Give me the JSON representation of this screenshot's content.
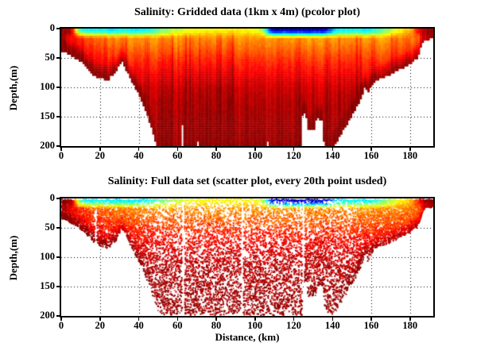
{
  "figure": {
    "background": "#ffffff",
    "text_color": "#000000"
  },
  "chart_data": {
    "charts": [
      {
        "type": "heatmap",
        "title": "Salinity: Gridded data (1km x 4m) (pcolor plot)",
        "xlabel": "",
        "ylabel": "Depth,(m)",
        "x_ticks": [
          0,
          20,
          40,
          60,
          80,
          100,
          120,
          140,
          160,
          180
        ],
        "y_ticks": [
          0,
          50,
          100,
          150,
          200
        ],
        "xlim": [
          0,
          192
        ],
        "ylim": [
          200,
          0
        ],
        "grid": "dotted",
        "colormap": "jet",
        "cell_km": 1,
        "cell_m": 4
      },
      {
        "type": "scatter",
        "title": "Salinity: Full data set (scatter plot, every 20th point usded)",
        "xlabel": "Distance, (km)",
        "ylabel": "Depth,(m)",
        "x_ticks": [
          0,
          20,
          40,
          60,
          80,
          100,
          120,
          140,
          160,
          180
        ],
        "y_ticks": [
          0,
          50,
          100,
          150,
          200
        ],
        "xlim": [
          0,
          192
        ],
        "ylim": [
          200,
          0
        ],
        "grid": "dotted",
        "colormap": "jet"
      }
    ],
    "field_model": {
      "comment_units": "seafloor: [km, depth_m]; surface_v and depth_profile: normalized jet colormap value 0..1 (0=fresh/blue, 1=salty/dark-red)",
      "seafloor": [
        [
          0,
          36
        ],
        [
          2,
          38
        ],
        [
          5,
          44
        ],
        [
          8,
          50
        ],
        [
          11,
          57
        ],
        [
          14,
          68
        ],
        [
          17,
          79
        ],
        [
          20,
          84
        ],
        [
          22,
          82
        ],
        [
          23,
          88
        ],
        [
          24.5,
          88
        ],
        [
          25.5,
          79
        ],
        [
          28,
          73
        ],
        [
          30,
          60
        ],
        [
          31,
          54
        ],
        [
          32,
          58
        ],
        [
          34,
          72
        ],
        [
          36,
          85
        ],
        [
          38,
          98
        ],
        [
          40,
          110
        ],
        [
          42,
          125
        ],
        [
          44,
          142
        ],
        [
          46,
          161
        ],
        [
          47.5,
          178
        ],
        [
          49,
          196
        ],
        [
          50,
          200
        ],
        [
          124,
          200
        ],
        [
          124.4,
          145
        ],
        [
          126.4,
          143
        ],
        [
          126.8,
          169
        ],
        [
          131,
          170
        ],
        [
          131.6,
          151
        ],
        [
          135,
          153
        ],
        [
          135.6,
          196
        ],
        [
          139,
          200
        ],
        [
          141,
          196
        ],
        [
          143,
          186
        ],
        [
          145,
          174
        ],
        [
          148,
          158
        ],
        [
          151,
          140
        ],
        [
          154,
          121
        ],
        [
          156,
          104
        ],
        [
          157,
          95
        ],
        [
          157.8,
          109
        ],
        [
          158.6,
          107
        ],
        [
          159.5,
          98
        ],
        [
          161,
          90
        ],
        [
          163,
          85
        ],
        [
          167,
          80
        ],
        [
          171,
          75
        ],
        [
          175,
          67
        ],
        [
          179,
          60
        ],
        [
          182,
          53
        ],
        [
          184,
          48
        ],
        [
          185,
          38
        ],
        [
          186,
          24
        ],
        [
          187.5,
          17
        ],
        [
          192,
          15
        ]
      ],
      "surface_v": [
        [
          0,
          0.95
        ],
        [
          5,
          0.93
        ],
        [
          6.5,
          0.76
        ],
        [
          8,
          0.56
        ],
        [
          10,
          0.42
        ],
        [
          13,
          0.36
        ],
        [
          20,
          0.38
        ],
        [
          26,
          0.35
        ],
        [
          33,
          0.38
        ],
        [
          40,
          0.36
        ],
        [
          46,
          0.4
        ],
        [
          50,
          0.46
        ],
        [
          55,
          0.52
        ],
        [
          60,
          0.57
        ],
        [
          65,
          0.6
        ],
        [
          72,
          0.62
        ],
        [
          80,
          0.63
        ],
        [
          90,
          0.63
        ],
        [
          100,
          0.62
        ],
        [
          104,
          0.55
        ],
        [
          106,
          0.35
        ],
        [
          108,
          0.14
        ],
        [
          111,
          0.06
        ],
        [
          116,
          0.1
        ],
        [
          120,
          0.05
        ],
        [
          125,
          0.08
        ],
        [
          130,
          0.06
        ],
        [
          133,
          0.1
        ],
        [
          136,
          0.08
        ],
        [
          139,
          0.22
        ],
        [
          141,
          0.33
        ],
        [
          144,
          0.37
        ],
        [
          150,
          0.38
        ],
        [
          157,
          0.36
        ],
        [
          162,
          0.4
        ],
        [
          166,
          0.48
        ],
        [
          170,
          0.55
        ],
        [
          174,
          0.62
        ],
        [
          178,
          0.66
        ],
        [
          181,
          0.72
        ],
        [
          183,
          0.8
        ],
        [
          185,
          0.88
        ],
        [
          187,
          0.94
        ],
        [
          192,
          0.96
        ]
      ],
      "depth_profile": [
        [
          8,
          0.7
        ],
        [
          15,
          0.725
        ],
        [
          25,
          0.75
        ],
        [
          40,
          0.79
        ],
        [
          55,
          0.835
        ],
        [
          70,
          0.87
        ],
        [
          85,
          0.9
        ],
        [
          100,
          0.925
        ],
        [
          120,
          0.945
        ],
        [
          150,
          0.96
        ],
        [
          200,
          0.978
        ]
      ],
      "data_gaps": [
        [
          62.1,
          63.3,
          163,
          200
        ],
        [
          69.6,
          70.6,
          191,
          200
        ],
        [
          105.6,
          106.6,
          193,
          200
        ]
      ],
      "scatter_streaks": [
        [
          17.5,
          18,
          95
        ],
        [
          62.6,
          3,
          200
        ],
        [
          93,
          3,
          200
        ],
        [
          124.6,
          3,
          200
        ]
      ]
    }
  }
}
